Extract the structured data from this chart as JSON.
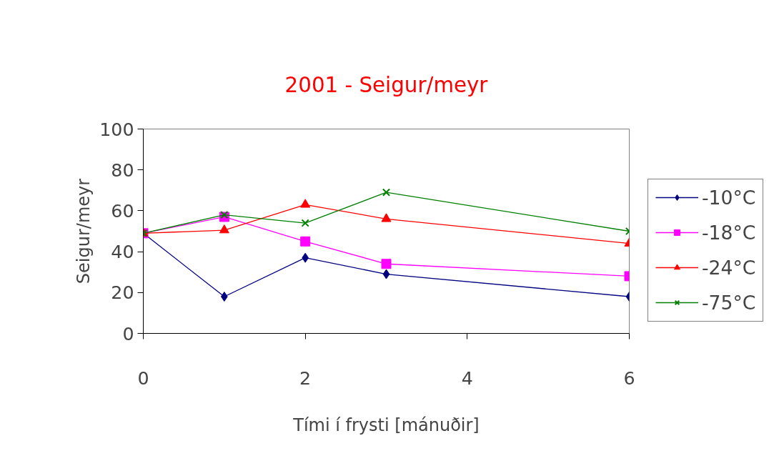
{
  "chart_data": {
    "type": "line",
    "title": "2001 - Seigur/meyr",
    "xlabel": "Tími í frysti [mánuðir]",
    "ylabel": "Seigur/meyr",
    "x": [
      0,
      1,
      2,
      3,
      6
    ],
    "xlim": [
      0,
      6
    ],
    "xticks": [
      0,
      2,
      4,
      6
    ],
    "ylim": [
      0,
      100
    ],
    "yticks": [
      0,
      20,
      40,
      60,
      80,
      100
    ],
    "grid": false,
    "legend": "right",
    "line_style": "solid",
    "series": [
      {
        "name": "-10°C",
        "color": "#000080",
        "marker": "diamond",
        "values": [
          49,
          18,
          37,
          29,
          18
        ]
      },
      {
        "name": "-18°C",
        "color": "#ff00ff",
        "marker": "square",
        "values": [
          49,
          57,
          45,
          34,
          28
        ]
      },
      {
        "name": "-24°C",
        "color": "#ff0000",
        "marker": "triangle",
        "values": [
          49,
          50.5,
          63,
          56,
          44
        ]
      },
      {
        "name": "-75°C",
        "color": "#008000",
        "marker": "x",
        "values": [
          49,
          58,
          54,
          69,
          50
        ]
      }
    ]
  }
}
